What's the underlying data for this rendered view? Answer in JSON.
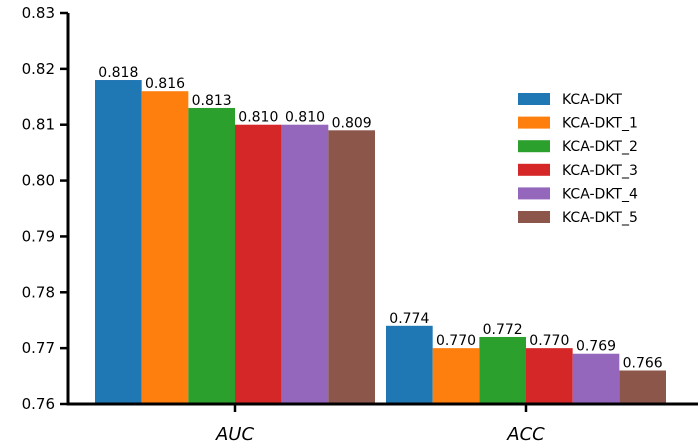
{
  "chart_data": {
    "type": "bar",
    "title": "",
    "xlabel": "",
    "ylabel": "",
    "categories": [
      "AUC",
      "ACC"
    ],
    "ylim": [
      0.76,
      0.83
    ],
    "yticks": [
      "0.76",
      "0.77",
      "0.78",
      "0.79",
      "0.80",
      "0.81",
      "0.82",
      "0.83"
    ],
    "grid": false,
    "legend_position": "right",
    "series": [
      {
        "name": "KCA-DKT",
        "color": "#1f77b4",
        "values": [
          0.818,
          0.774
        ],
        "labels": [
          "0.818",
          "0.774"
        ]
      },
      {
        "name": "KCA-DKT_1",
        "color": "#ff7f0e",
        "values": [
          0.816,
          0.77
        ],
        "labels": [
          "0.816",
          "0.770"
        ]
      },
      {
        "name": "KCA-DKT_2",
        "color": "#2ca02c",
        "values": [
          0.813,
          0.772
        ],
        "labels": [
          "0.813",
          "0.772"
        ]
      },
      {
        "name": "KCA-DKT_3",
        "color": "#d62728",
        "values": [
          0.81,
          0.77
        ],
        "labels": [
          "0.810",
          "0.770"
        ]
      },
      {
        "name": "KCA-DKT_4",
        "color": "#9467bd",
        "values": [
          0.81,
          0.769
        ],
        "labels": [
          "0.810",
          "0.769"
        ]
      },
      {
        "name": "KCA-DKT_5",
        "color": "#8c564b",
        "values": [
          0.809,
          0.766
        ],
        "labels": [
          "0.809",
          "0.766"
        ]
      }
    ]
  }
}
